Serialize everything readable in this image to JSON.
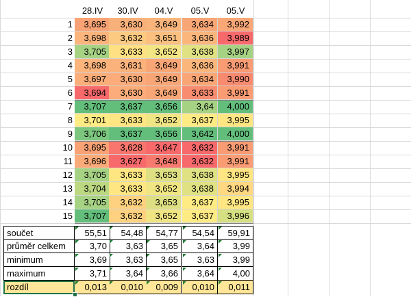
{
  "columns": [
    "28.IV",
    "30.IV",
    "04.V",
    "05.V",
    "05.V"
  ],
  "rows": [
    {
      "num": "1",
      "values": [
        "3,695",
        "3,630",
        "3,649",
        "3,634",
        "3,992"
      ],
      "colors": [
        "#f9a275",
        "#f8b07a",
        "#f8b47b",
        "#f9a676",
        "#f9a776"
      ]
    },
    {
      "num": "2",
      "values": [
        "3,698",
        "3,632",
        "3,651",
        "3,636",
        "3,989"
      ],
      "colors": [
        "#fbb47c",
        "#fdca81",
        "#fbc07f",
        "#fbb67c",
        "#f8696b"
      ]
    },
    {
      "num": "3",
      "values": [
        "3,705",
        "3,633",
        "3,652",
        "3,638",
        "3,997"
      ],
      "colors": [
        "#a6d283",
        "#ffe183",
        "#f3e484",
        "#dfe183",
        "#a6d283"
      ]
    },
    {
      "num": "4",
      "values": [
        "3,698",
        "3,631",
        "3,649",
        "3,636",
        "3,991"
      ],
      "colors": [
        "#fbb47c",
        "#fbb27b",
        "#f9a676",
        "#fbb67c",
        "#f99b73"
      ]
    },
    {
      "num": "5",
      "values": [
        "3,697",
        "3,630",
        "3,649",
        "3,634",
        "3,990"
      ],
      "colors": [
        "#fbad7a",
        "#fbac7a",
        "#f9a676",
        "#f9a575",
        "#f88a70"
      ]
    },
    {
      "num": "6",
      "values": [
        "3,694",
        "3,630",
        "3,649",
        "3,633",
        "3,991"
      ],
      "colors": [
        "#f8696b",
        "#fbac7a",
        "#f9a676",
        "#f88c70",
        "#f99b73"
      ]
    },
    {
      "num": "7",
      "values": [
        "3,707",
        "3,637",
        "3,656",
        "3,64",
        "4,000"
      ],
      "colors": [
        "#63be7b",
        "#63be7b",
        "#63be7b",
        "#a6d283",
        "#63be7b"
      ]
    },
    {
      "num": "8",
      "values": [
        "3,701",
        "3,633",
        "3,652",
        "3,637",
        "3,995"
      ],
      "colors": [
        "#ffeb84",
        "#ffe683",
        "#f0e583",
        "#ffeb84",
        "#ffe683"
      ]
    },
    {
      "num": "9",
      "values": [
        "3,706",
        "3,637",
        "3,656",
        "3,642",
        "4,000"
      ],
      "colors": [
        "#7cc67e",
        "#63be7b",
        "#63be7b",
        "#63be7b",
        "#63be7b"
      ]
    },
    {
      "num": "10",
      "values": [
        "3,695",
        "3,628",
        "3,647",
        "3,632",
        "3,991"
      ],
      "colors": [
        "#f9a275",
        "#f8766d",
        "#f8696b",
        "#f8696b",
        "#f99b73"
      ]
    },
    {
      "num": "11",
      "values": [
        "3,696",
        "3,627",
        "3,648",
        "3,632",
        "3,991"
      ],
      "colors": [
        "#fbaa79",
        "#f8696b",
        "#f8796e",
        "#f8696b",
        "#f99b73"
      ]
    },
    {
      "num": "12",
      "values": [
        "3,705",
        "3,633",
        "3,653",
        "3,638",
        "3,995"
      ],
      "colors": [
        "#a6d283",
        "#ffe683",
        "#dedf82",
        "#dfe183",
        "#ffe683"
      ]
    },
    {
      "num": "13",
      "values": [
        "3,704",
        "3,633",
        "3,652",
        "3,638",
        "3,994"
      ],
      "colors": [
        "#bcd982",
        "#ffe683",
        "#f0e583",
        "#dfe183",
        "#ffd881"
      ]
    },
    {
      "num": "14",
      "values": [
        "3,705",
        "3,632",
        "3,653",
        "3,637",
        "3,995"
      ],
      "colors": [
        "#a6d283",
        "#fdd17f",
        "#dedf82",
        "#ffeb84",
        "#ffe683"
      ]
    },
    {
      "num": "15",
      "values": [
        "3,707",
        "3,632",
        "3,652",
        "3,637",
        "3,996"
      ],
      "colors": [
        "#63be7b",
        "#fdd17f",
        "#f0e583",
        "#ffeb84",
        "#d6e083"
      ]
    }
  ],
  "summary": [
    {
      "label": "součet",
      "values": [
        "55,51",
        "54,48",
        "54,77",
        "54,54",
        "59,91"
      ]
    },
    {
      "label": "průměr celkem",
      "values": [
        "3,70",
        "3,63",
        "3,65",
        "3,64",
        "3,99"
      ]
    },
    {
      "label": " minimum",
      "values": [
        "3,69",
        "3,63",
        "3,65",
        "3,63",
        "3,99"
      ]
    },
    {
      "label": "maximum",
      "values": [
        "3,71",
        "3,64",
        "3,66",
        "3,64",
        "4,00"
      ]
    },
    {
      "label": "rozdíl",
      "values": [
        "0,013",
        "0,010",
        "0,009",
        "0,010",
        "0,011"
      ]
    }
  ],
  "colors": {
    "rozdil_fill": "#ffe699",
    "selection_border": "#217346",
    "error_triangle": "#1e7a34",
    "gridline": "#d9d9d9"
  }
}
